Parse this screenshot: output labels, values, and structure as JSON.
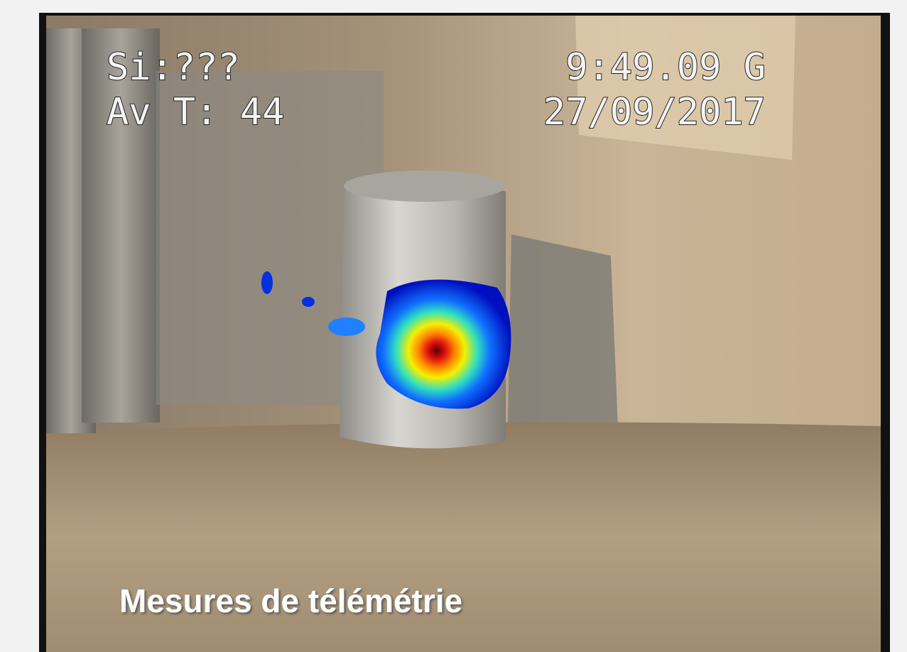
{
  "overlay": {
    "top_left": [
      "Si:???",
      "Av T: 44"
    ],
    "top_right": [
      "9:49.09 G",
      "27/09/2017"
    ]
  },
  "caption": "Mesures de télémétrie"
}
